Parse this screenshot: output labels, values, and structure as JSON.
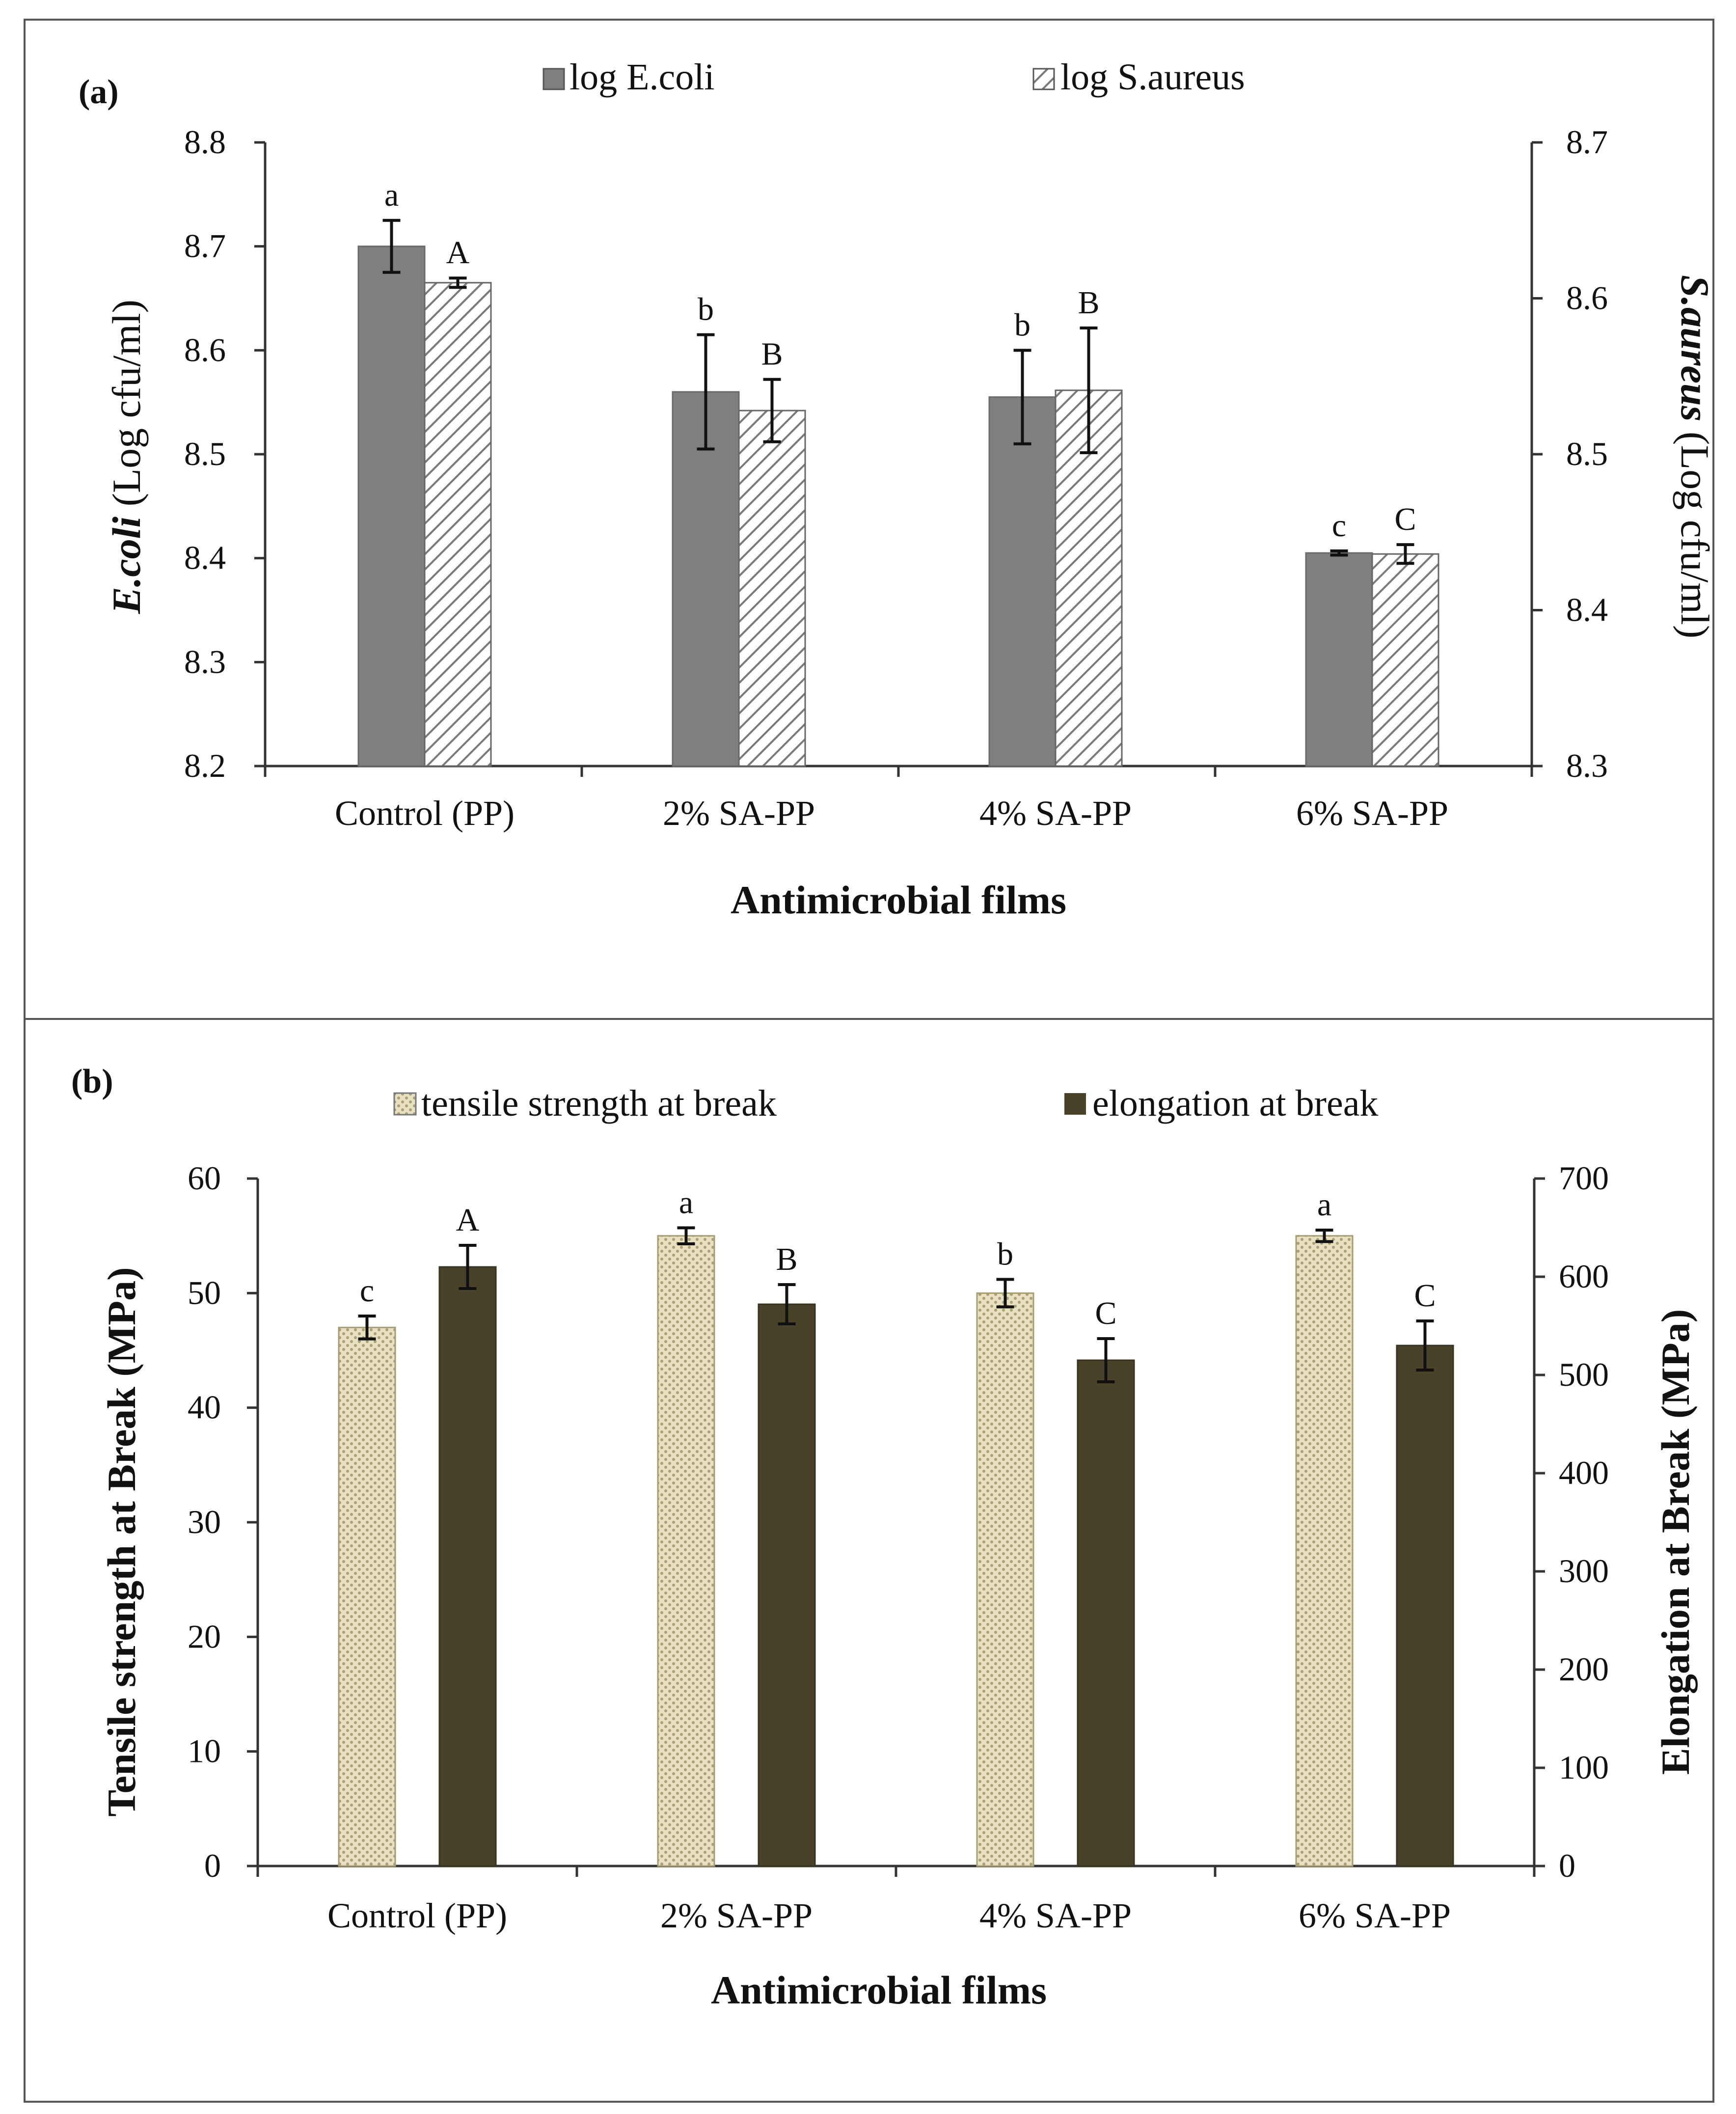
{
  "colors": {
    "ecoli": "#7f7f7f",
    "saureus_bg": "#ffffff",
    "saureus_stripe": "#7a7a7a",
    "tensile_bg": "#e8e0c2",
    "tensile_dot": "#a99f72",
    "elongation": "#4a4228"
  },
  "chart_data": [
    {
      "type": "bar",
      "panel_label": "(a)",
      "categories": [
        "Control (PP)",
        "2% SA-PP",
        "4% SA-PP",
        "6% SA-PP"
      ],
      "xlabel": "Antimicrobial films",
      "ylabel_left_italic": "E.coli",
      "ylabel_left_rest": " (Log cfu/ml)",
      "ylabel_right_italic": "S.aureus",
      "ylabel_right_rest": " (Log cfu/ml)",
      "ylim_left": [
        8.2,
        8.8
      ],
      "ylim_right": [
        8.3,
        8.7
      ],
      "yticks_left": [
        "8.2",
        "8.3",
        "8.4",
        "8.5",
        "8.6",
        "8.7",
        "8.8"
      ],
      "yticks_right": [
        "8.3",
        "8.4",
        "8.5",
        "8.6",
        "8.7"
      ],
      "legend": [
        "log E.coli",
        "log S.aureus"
      ],
      "series": [
        {
          "name": "log E.coli",
          "axis": "left",
          "pattern": "solid-gray",
          "values": [
            8.7,
            8.56,
            8.555,
            8.405
          ],
          "errors": [
            0.025,
            0.055,
            0.045,
            0.002
          ],
          "letters": [
            "a",
            "b",
            "b",
            "c"
          ]
        },
        {
          "name": "log S.aureus",
          "axis": "right",
          "pattern": "hatched",
          "values": [
            8.61,
            8.528,
            8.541,
            8.436
          ],
          "errors": [
            0.003,
            0.02,
            0.04,
            0.006
          ],
          "letters": [
            "A",
            "B",
            "B",
            "C"
          ]
        }
      ]
    },
    {
      "type": "bar",
      "panel_label": "(b)",
      "categories": [
        "Control (PP)",
        "2% SA-PP",
        "4% SA-PP",
        "6% SA-PP"
      ],
      "xlabel": "Antimicrobial films",
      "ylabel_left": "Tensile strength at Break (MPa)",
      "ylabel_right": "Elongation at Break (MPa)",
      "ylim_left": [
        0,
        60
      ],
      "ylim_right": [
        0,
        700
      ],
      "yticks_left": [
        "0",
        "10",
        "20",
        "30",
        "40",
        "50",
        "60"
      ],
      "yticks_right": [
        "0",
        "100",
        "200",
        "300",
        "400",
        "500",
        "600",
        "700"
      ],
      "legend": [
        "tensile strength at break",
        "elongation at break"
      ],
      "series": [
        {
          "name": "tensile strength at break",
          "axis": "left",
          "pattern": "dotted-tan",
          "values": [
            47,
            55,
            50,
            55
          ],
          "errors": [
            1.0,
            0.7,
            1.2,
            0.5
          ],
          "letters": [
            "c",
            "a",
            "b",
            "a"
          ]
        },
        {
          "name": "elongation at break",
          "axis": "right",
          "pattern": "solid-dark",
          "values": [
            610,
            572,
            515,
            530
          ],
          "errors": [
            22,
            20,
            22,
            25
          ],
          "letters": [
            "A",
            "B",
            "C",
            "C"
          ]
        }
      ]
    }
  ]
}
